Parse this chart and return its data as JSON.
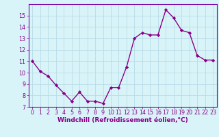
{
  "x": [
    0,
    1,
    2,
    3,
    4,
    5,
    6,
    7,
    8,
    9,
    10,
    11,
    12,
    13,
    14,
    15,
    16,
    17,
    18,
    19,
    20,
    21,
    22,
    23
  ],
  "y": [
    11,
    10.1,
    9.7,
    8.9,
    8.2,
    7.5,
    8.3,
    7.5,
    7.5,
    7.3,
    8.7,
    8.7,
    10.5,
    13.0,
    13.5,
    13.3,
    13.3,
    15.5,
    14.8,
    13.7,
    13.5,
    11.5,
    11.1,
    11.1
  ],
  "line_color": "#880088",
  "marker": "D",
  "markersize": 2.2,
  "linewidth": 1.0,
  "xlabel": "Windchill (Refroidissement éolien,°C)",
  "xlabel_fontsize": 6.5,
  "bg_color": "#d8f4f8",
  "grid_color": "#b8dce8",
  "ylim": [
    7,
    16
  ],
  "xlim": [
    -0.5,
    23.5
  ],
  "yticks": [
    7,
    8,
    9,
    10,
    11,
    12,
    13,
    14,
    15
  ],
  "xticks": [
    0,
    1,
    2,
    3,
    4,
    5,
    6,
    7,
    8,
    9,
    10,
    11,
    12,
    13,
    14,
    15,
    16,
    17,
    18,
    19,
    20,
    21,
    22,
    23
  ],
  "tick_fontsize": 5.8,
  "spine_color": "#7700aa"
}
